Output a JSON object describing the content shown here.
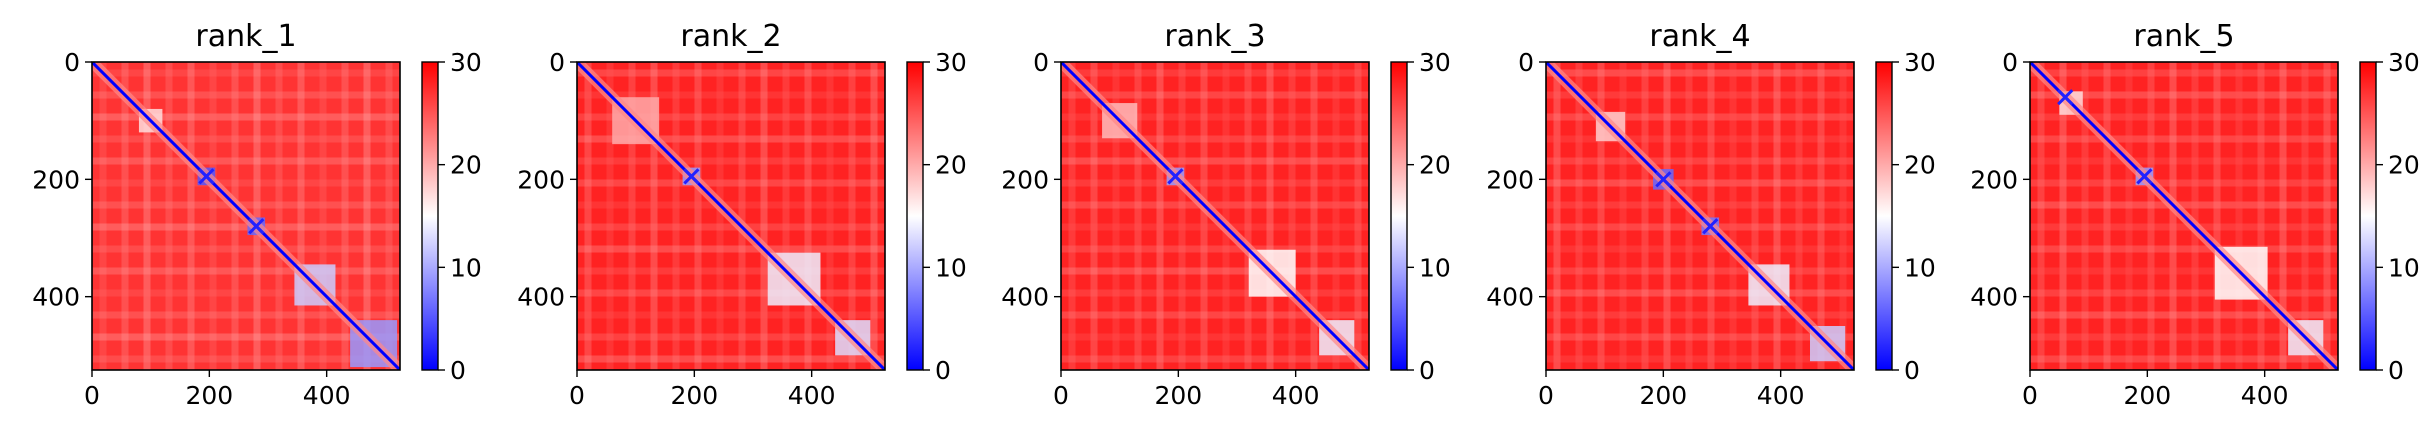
{
  "chart_data": {
    "type": "heatmap",
    "colormap": {
      "name": "bwr",
      "stops": [
        "#0000ff",
        "#ffffff",
        "#ff0000"
      ],
      "range": [
        0,
        30
      ],
      "ticks": [
        0,
        10,
        20,
        30
      ]
    },
    "axes": {
      "x_range": [
        0,
        525
      ],
      "y_range": [
        0,
        525
      ],
      "x_ticks": [
        0,
        200,
        400
      ],
      "y_ticks": [
        0,
        200,
        400
      ],
      "y_inverted": true,
      "grid": false
    },
    "panels": [
      {
        "title": "rank_1",
        "diagonal_domains": [
          {
            "center": 100,
            "size": 40,
            "value": 17
          },
          {
            "center": 195,
            "size": 30,
            "value": 5
          },
          {
            "center": 280,
            "size": 30,
            "value": 6
          },
          {
            "center": 380,
            "size": 70,
            "value": 12
          },
          {
            "center": 480,
            "size": 80,
            "value": 9
          }
        ],
        "cross_marks": [
          195,
          280
        ],
        "background_value": 27
      },
      {
        "title": "rank_2",
        "diagonal_domains": [
          {
            "center": 100,
            "size": 80,
            "value": 20
          },
          {
            "center": 195,
            "size": 30,
            "value": 9
          },
          {
            "center": 370,
            "size": 90,
            "value": 14
          },
          {
            "center": 470,
            "size": 60,
            "value": 13
          }
        ],
        "cross_marks": [
          195
        ],
        "background_value": 28
      },
      {
        "title": "rank_3",
        "diagonal_domains": [
          {
            "center": 100,
            "size": 60,
            "value": 19
          },
          {
            "center": 195,
            "size": 30,
            "value": 9
          },
          {
            "center": 360,
            "size": 80,
            "value": 15
          },
          {
            "center": 470,
            "size": 60,
            "value": 14
          }
        ],
        "cross_marks": [
          195
        ],
        "background_value": 28
      },
      {
        "title": "rank_4",
        "diagonal_domains": [
          {
            "center": 110,
            "size": 50,
            "value": 18
          },
          {
            "center": 200,
            "size": 35,
            "value": 6
          },
          {
            "center": 280,
            "size": 30,
            "value": 7
          },
          {
            "center": 380,
            "size": 70,
            "value": 14
          },
          {
            "center": 480,
            "size": 60,
            "value": 12
          }
        ],
        "cross_marks": [
          200,
          280
        ],
        "background_value": 28
      },
      {
        "title": "rank_5",
        "diagonal_domains": [
          {
            "center": 70,
            "size": 40,
            "value": 17
          },
          {
            "center": 195,
            "size": 30,
            "value": 9
          },
          {
            "center": 360,
            "size": 90,
            "value": 15
          },
          {
            "center": 470,
            "size": 60,
            "value": 14
          }
        ],
        "cross_marks": [
          60,
          195
        ],
        "background_value": 28
      }
    ]
  }
}
